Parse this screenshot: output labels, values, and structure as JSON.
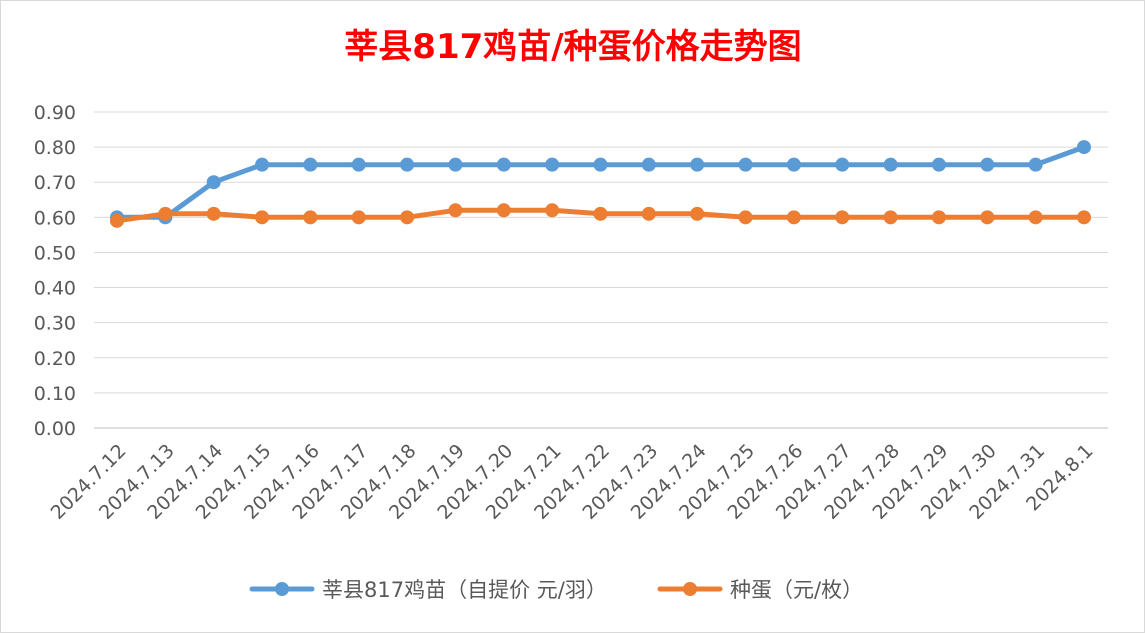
{
  "chart_data": {
    "type": "line",
    "title": "莘县817鸡苗/种蛋价格走势图",
    "categories": [
      "2024.7.12",
      "2024.7.13",
      "2024.7.14",
      "2024.7.15",
      "2024.7.16",
      "2024.7.17",
      "2024.7.18",
      "2024.7.19",
      "2024.7.20",
      "2024.7.21",
      "2024.7.22",
      "2024.7.23",
      "2024.7.24",
      "2024.7.25",
      "2024.7.26",
      "2024.7.27",
      "2024.7.28",
      "2024.7.29",
      "2024.7.30",
      "2024.7.31",
      "2024.8.1"
    ],
    "series": [
      {
        "name": "莘县817鸡苗（自提价 元/羽）",
        "color": "#5b9bd5",
        "values": [
          0.6,
          0.6,
          0.7,
          0.75,
          0.75,
          0.75,
          0.75,
          0.75,
          0.75,
          0.75,
          0.75,
          0.75,
          0.75,
          0.75,
          0.75,
          0.75,
          0.75,
          0.75,
          0.75,
          0.75,
          0.8
        ]
      },
      {
        "name": "种蛋（元/枚）",
        "color": "#ed7d31",
        "values": [
          0.59,
          0.61,
          0.61,
          0.6,
          0.6,
          0.6,
          0.6,
          0.62,
          0.62,
          0.62,
          0.61,
          0.61,
          0.61,
          0.6,
          0.6,
          0.6,
          0.6,
          0.6,
          0.6,
          0.6,
          0.6
        ]
      }
    ],
    "ylim": [
      0,
      0.9
    ],
    "yticks": [
      "0.00",
      "0.10",
      "0.20",
      "0.30",
      "0.40",
      "0.50",
      "0.60",
      "0.70",
      "0.80",
      "0.90"
    ],
    "grid": true,
    "legend_position": "bottom",
    "title_color": "#ff0000"
  }
}
